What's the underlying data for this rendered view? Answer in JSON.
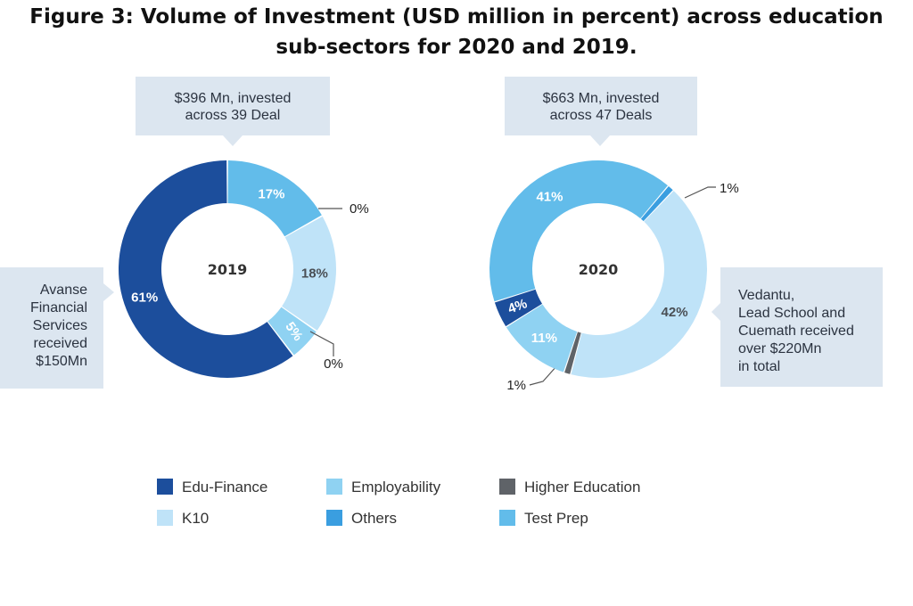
{
  "title": {
    "line1": "Figure 3: Volume of Investment (USD million in percent) across education",
    "line2": "sub-sectors for 2020 and 2019."
  },
  "charts": {
    "left": {
      "callout_top": [
        "$396 Mn, invested",
        "across 39 Deal"
      ],
      "callout_side": [
        "Avanse",
        "Financial",
        "Services",
        "received",
        "$150Mn"
      ],
      "center_label": "2019"
    },
    "right": {
      "callout_top": [
        "$663 Mn, invested",
        "across 47 Deals"
      ],
      "callout_side": [
        "Vedantu,",
        "Lead School and",
        "Cuemath received",
        "over $220Mn",
        "in total"
      ],
      "center_label": "2020"
    }
  },
  "colors": {
    "Edu-Finance": "#1c4e9c",
    "Employability": "#8fd2f2",
    "Higher Education": "#5f6368",
    "K10": "#bfe3f8",
    "Others": "#3a9ee0",
    "Test Prep": "#62bcea",
    "callout": "#dce6f0"
  },
  "legend": [
    {
      "label": "Edu-Finance",
      "color": "#1c4e9c"
    },
    {
      "label": "Employability",
      "color": "#8fd2f2"
    },
    {
      "label": "Higher Education",
      "color": "#5f6368"
    },
    {
      "label": "K10",
      "color": "#bfe3f8"
    },
    {
      "label": "Others",
      "color": "#3a9ee0"
    },
    {
      "label": "Test Prep",
      "color": "#62bcea"
    }
  ],
  "chart_data": [
    {
      "type": "pie",
      "subtype": "donut",
      "center_label": "2019",
      "slices": [
        {
          "category": "Test Prep",
          "value": 17,
          "label": "17%",
          "label_outside": false
        },
        {
          "category": "Others",
          "value": 0,
          "label": "0%",
          "label_outside": true
        },
        {
          "category": "K10",
          "value": 18,
          "label": "18%",
          "label_outside": false
        },
        {
          "category": "Employability",
          "value": 5,
          "label": "5%",
          "label_outside": false
        },
        {
          "category": "Higher Education",
          "value": 0,
          "label": "0%",
          "label_outside": true
        },
        {
          "category": "Edu-Finance",
          "value": 61,
          "label": "61%",
          "label_outside": false
        }
      ]
    },
    {
      "type": "pie",
      "subtype": "donut",
      "center_label": "2020",
      "slices": [
        {
          "category": "Others",
          "value": 1,
          "label": "1%",
          "label_outside": true
        },
        {
          "category": "K10",
          "value": 42,
          "label": "42%",
          "label_outside": false
        },
        {
          "category": "Higher Education",
          "value": 1,
          "label": "1%",
          "label_outside": true
        },
        {
          "category": "Employability",
          "value": 11,
          "label": "11%",
          "label_outside": false
        },
        {
          "category": "Edu-Finance",
          "value": 4,
          "label": "4%",
          "label_outside": false
        },
        {
          "category": "Test Prep",
          "value": 41,
          "label": "41%",
          "label_outside": false
        }
      ]
    }
  ]
}
